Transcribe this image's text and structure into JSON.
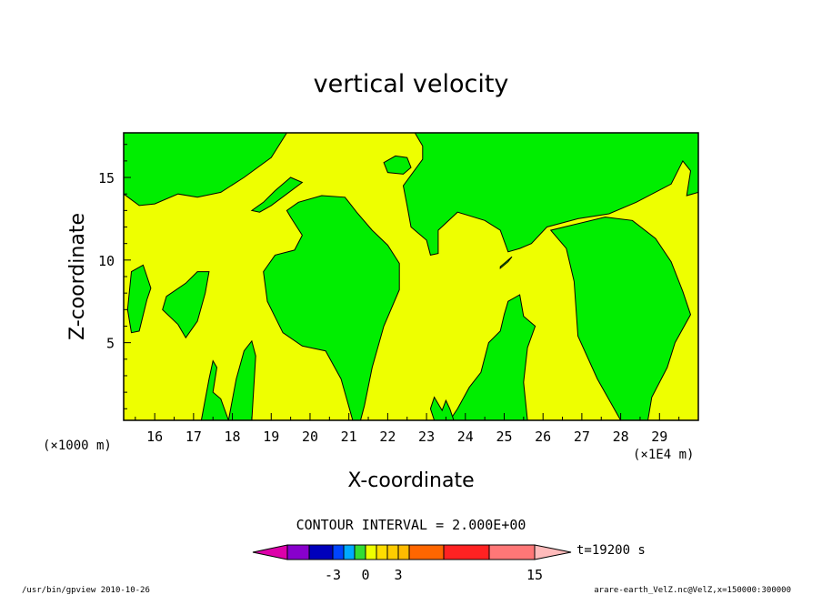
{
  "chart_data": {
    "type": "heatmap",
    "title": "vertical velocity",
    "xlabel": "X-coordinate",
    "ylabel": "Z-coordinate",
    "x_unit_left": "(×1000 m)",
    "x_unit_right": "(×1E4 m)",
    "x_ticks": [
      "16",
      "17",
      "18",
      "19",
      "20",
      "21",
      "22",
      "23",
      "24",
      "25",
      "26",
      "27",
      "28",
      "29"
    ],
    "y_ticks": [
      "5",
      "10",
      "15"
    ],
    "xlim": [
      15.2,
      30.0
    ],
    "ylim": [
      0.3,
      17.7
    ],
    "colors": {
      "negative_small": "#00ee00",
      "positive_small": "#eeff00"
    },
    "regions_green": [
      {
        "id": "top-left",
        "pts": [
          [
            15.2,
            17.7
          ],
          [
            19.4,
            17.7
          ],
          [
            19.0,
            16.2
          ],
          [
            18.3,
            15.0
          ],
          [
            17.7,
            14.1
          ],
          [
            17.1,
            13.8
          ],
          [
            16.6,
            14.0
          ],
          [
            16.0,
            13.4
          ],
          [
            15.6,
            13.3
          ],
          [
            15.2,
            14.0
          ]
        ]
      },
      {
        "id": "left-blob",
        "pts": [
          [
            15.4,
            9.3
          ],
          [
            15.7,
            9.7
          ],
          [
            15.9,
            8.3
          ],
          [
            15.8,
            7.6
          ],
          [
            15.6,
            5.7
          ],
          [
            15.4,
            5.6
          ],
          [
            15.3,
            7.0
          ]
        ]
      },
      {
        "id": "left-blob2",
        "pts": [
          [
            16.3,
            7.8
          ],
          [
            16.8,
            8.6
          ],
          [
            17.1,
            9.3
          ],
          [
            17.4,
            9.3
          ],
          [
            17.3,
            8.0
          ],
          [
            17.1,
            6.3
          ],
          [
            16.8,
            5.3
          ],
          [
            16.6,
            6.1
          ],
          [
            16.2,
            7.0
          ]
        ]
      },
      {
        "id": "bottom-spike1",
        "pts": [
          [
            17.2,
            0.3
          ],
          [
            17.4,
            2.8
          ],
          [
            17.5,
            3.9
          ],
          [
            17.6,
            3.5
          ],
          [
            17.5,
            2.0
          ],
          [
            17.7,
            1.6
          ],
          [
            17.9,
            0.3
          ]
        ]
      },
      {
        "id": "bottom-spike2",
        "pts": [
          [
            17.9,
            0.3
          ],
          [
            18.1,
            2.8
          ],
          [
            18.3,
            4.5
          ],
          [
            18.5,
            5.1
          ],
          [
            18.6,
            4.2
          ],
          [
            18.5,
            0.3
          ]
        ]
      },
      {
        "id": "mid-left-tongue",
        "pts": [
          [
            19.4,
            13.0
          ],
          [
            19.7,
            13.5
          ],
          [
            20.3,
            13.9
          ],
          [
            20.9,
            13.8
          ],
          [
            21.2,
            12.9
          ],
          [
            21.6,
            11.8
          ],
          [
            22.0,
            10.9
          ],
          [
            22.3,
            9.8
          ],
          [
            22.3,
            8.2
          ],
          [
            21.9,
            6.0
          ],
          [
            21.6,
            3.5
          ],
          [
            21.4,
            1.2
          ],
          [
            21.3,
            0.3
          ],
          [
            21.1,
            0.3
          ],
          [
            20.8,
            2.8
          ],
          [
            20.4,
            4.5
          ],
          [
            19.8,
            4.8
          ],
          [
            19.3,
            5.6
          ],
          [
            18.9,
            7.5
          ],
          [
            18.8,
            9.3
          ],
          [
            19.1,
            10.3
          ],
          [
            19.6,
            10.6
          ],
          [
            19.8,
            11.5
          ],
          [
            19.5,
            12.6
          ]
        ]
      },
      {
        "id": "mid-left-top",
        "pts": [
          [
            18.5,
            13.0
          ],
          [
            18.8,
            13.5
          ],
          [
            19.1,
            14.2
          ],
          [
            19.3,
            14.6
          ],
          [
            19.5,
            15.0
          ],
          [
            19.8,
            14.7
          ],
          [
            19.4,
            14.0
          ],
          [
            19.0,
            13.3
          ],
          [
            18.7,
            12.9
          ]
        ]
      },
      {
        "id": "small-top",
        "pts": [
          [
            21.9,
            15.9
          ],
          [
            22.2,
            16.3
          ],
          [
            22.5,
            16.2
          ],
          [
            22.6,
            15.6
          ],
          [
            22.4,
            15.2
          ],
          [
            22.0,
            15.3
          ]
        ]
      },
      {
        "id": "right-big",
        "pts": [
          [
            22.7,
            17.7
          ],
          [
            30.0,
            17.7
          ],
          [
            30.0,
            14.1
          ],
          [
            29.7,
            13.9
          ],
          [
            29.8,
            15.4
          ],
          [
            29.6,
            16.0
          ],
          [
            29.3,
            14.6
          ],
          [
            28.4,
            13.5
          ],
          [
            27.7,
            12.8
          ],
          [
            26.9,
            12.5
          ],
          [
            26.1,
            12.0
          ],
          [
            25.7,
            11.0
          ],
          [
            25.4,
            10.7
          ],
          [
            25.1,
            10.5
          ],
          [
            24.9,
            11.8
          ],
          [
            24.5,
            12.4
          ],
          [
            23.8,
            12.9
          ],
          [
            23.3,
            11.8
          ],
          [
            23.3,
            10.4
          ],
          [
            23.1,
            10.3
          ],
          [
            23.0,
            11.2
          ],
          [
            22.6,
            12.0
          ],
          [
            22.5,
            13.3
          ],
          [
            22.4,
            14.5
          ],
          [
            22.9,
            16.1
          ],
          [
            22.9,
            16.9
          ]
        ]
      },
      {
        "id": "right-lower",
        "pts": [
          [
            27.6,
            12.6
          ],
          [
            28.3,
            12.4
          ],
          [
            28.9,
            11.3
          ],
          [
            29.3,
            9.9
          ],
          [
            29.6,
            8.1
          ],
          [
            29.8,
            6.7
          ],
          [
            29.4,
            5.0
          ],
          [
            29.2,
            3.5
          ],
          [
            28.8,
            1.7
          ],
          [
            28.7,
            0.3
          ],
          [
            28.0,
            0.3
          ],
          [
            27.4,
            2.8
          ],
          [
            26.9,
            5.4
          ],
          [
            26.8,
            8.7
          ],
          [
            26.6,
            10.7
          ],
          [
            26.2,
            11.8
          ]
        ]
      },
      {
        "id": "tiny-dot",
        "pts": [
          [
            24.9,
            9.5
          ],
          [
            25.1,
            9.9
          ],
          [
            25.2,
            10.2
          ],
          [
            25.0,
            9.8
          ],
          [
            24.9,
            9.6
          ]
        ]
      },
      {
        "id": "bottom-right-mid",
        "pts": [
          [
            23.6,
            0.3
          ],
          [
            23.8,
            1.0
          ],
          [
            24.1,
            2.3
          ],
          [
            24.4,
            3.2
          ],
          [
            24.6,
            5.0
          ],
          [
            24.9,
            5.7
          ],
          [
            25.0,
            6.7
          ],
          [
            25.1,
            7.5
          ],
          [
            25.4,
            7.9
          ],
          [
            25.5,
            6.6
          ],
          [
            25.8,
            6.0
          ],
          [
            25.6,
            4.7
          ],
          [
            25.5,
            2.6
          ],
          [
            25.6,
            0.3
          ]
        ]
      },
      {
        "id": "bottom-spikes-23",
        "pts": [
          [
            23.2,
            0.3
          ],
          [
            23.1,
            1.0
          ],
          [
            23.2,
            1.7
          ],
          [
            23.4,
            0.9
          ],
          [
            23.5,
            1.5
          ],
          [
            23.6,
            1.0
          ],
          [
            23.7,
            0.3
          ]
        ]
      }
    ],
    "colorbar": {
      "label": "CONTOUR INTERVAL = 2.000E+00",
      "colors": [
        "#dd00aa",
        "#8800cc",
        "#0000bb",
        "#0044ff",
        "#00aaff",
        "#33dd33",
        "#eeff00",
        "#ffdd00",
        "#ffcc00",
        "#ffbb00",
        "#ff6600",
        "#ff2222",
        "#ff7777",
        "#ffbbbb"
      ],
      "tick_labels": [
        "-3",
        "0",
        "3",
        "15"
      ],
      "time_label": "t=19200 s"
    },
    "footer_left": "/usr/bin/gpview  2010-10-26",
    "footer_right": "arare-earth_VelZ.nc@VelZ,x=150000:300000"
  }
}
